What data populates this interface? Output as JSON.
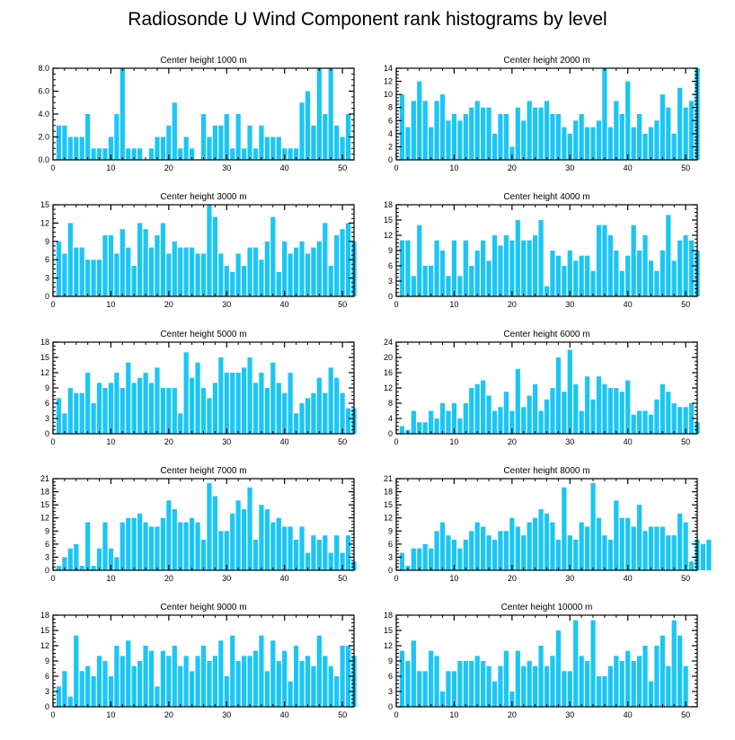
{
  "title": "Radiosonde U Wind Component rank histograms by level",
  "colors": {
    "bar": "#1AC6F5",
    "frame": "#000000",
    "background": "#FFFFFF"
  },
  "chart_data": [
    {
      "type": "bar",
      "title": "Center height 1000 m",
      "x_start": 1,
      "xlim": [
        0,
        52
      ],
      "xticks": [
        0,
        10,
        20,
        30,
        40,
        50
      ],
      "ylim": [
        0,
        8
      ],
      "yticks": [
        0,
        2,
        4,
        6,
        8
      ],
      "ytick_labels": [
        "0.0",
        "2.0",
        "4.0",
        "6.0",
        "8.0"
      ],
      "values": [
        3,
        3,
        2,
        2,
        2,
        4,
        1,
        1,
        1,
        2,
        4,
        8,
        1,
        1,
        1,
        0,
        1,
        2,
        2,
        3,
        5,
        1,
        2,
        1,
        0,
        4,
        2,
        3,
        3,
        4,
        1,
        4,
        1,
        3,
        1,
        3,
        2,
        2,
        2,
        1,
        1,
        1,
        5,
        6,
        3,
        8,
        4,
        8,
        3,
        2,
        4
      ]
    },
    {
      "type": "bar",
      "title": "Center height 2000 m",
      "x_start": 1,
      "xlim": [
        0,
        52
      ],
      "xticks": [
        0,
        10,
        20,
        30,
        40,
        50
      ],
      "ylim": [
        0,
        14
      ],
      "yticks": [
        0,
        2,
        4,
        6,
        8,
        10,
        12,
        14
      ],
      "ytick_labels": [
        "0",
        "2",
        "4",
        "6",
        "8",
        "10",
        "12",
        "14"
      ],
      "values": [
        10,
        5,
        9,
        12,
        9,
        5,
        9,
        10,
        6,
        7,
        6,
        7,
        8,
        9,
        8,
        8,
        4,
        7,
        7,
        2,
        8,
        6,
        9,
        8,
        8,
        9,
        7,
        7,
        5,
        4,
        6,
        7,
        5,
        5,
        6,
        14,
        5,
        9,
        7,
        12,
        5,
        7,
        4,
        5,
        6,
        10,
        8,
        4,
        11,
        8,
        9,
        14
      ]
    },
    {
      "type": "bar",
      "title": "Center height 3000 m",
      "x_start": 1,
      "xlim": [
        0,
        52
      ],
      "xticks": [
        0,
        10,
        20,
        30,
        40,
        50
      ],
      "ylim": [
        0,
        15
      ],
      "yticks": [
        0,
        3,
        6,
        9,
        12,
        15
      ],
      "ytick_labels": [
        "0",
        "3",
        "6",
        "9",
        "12",
        "15"
      ],
      "values": [
        9,
        7,
        12,
        8,
        8,
        6,
        6,
        6,
        10,
        10,
        7,
        11,
        8,
        5,
        12,
        11,
        8,
        10,
        12,
        7,
        9,
        8,
        8,
        8,
        7,
        7,
        15,
        13,
        7,
        5,
        4,
        7,
        5,
        8,
        8,
        6,
        9,
        13,
        4,
        9,
        7,
        8,
        9,
        7,
        8,
        9,
        12,
        5,
        10,
        11,
        12,
        9
      ]
    },
    {
      "type": "bar",
      "title": "Center height 4000 m",
      "x_start": 1,
      "xlim": [
        0,
        52
      ],
      "xticks": [
        0,
        10,
        20,
        30,
        40,
        50
      ],
      "ylim": [
        0,
        18
      ],
      "yticks": [
        0,
        3,
        6,
        9,
        12,
        15,
        18
      ],
      "ytick_labels": [
        "0",
        "3",
        "6",
        "9",
        "12",
        "15",
        "18"
      ],
      "values": [
        11,
        11,
        4,
        14,
        6,
        6,
        11,
        9,
        4,
        11,
        4,
        11,
        6,
        9,
        11,
        7,
        12,
        10,
        12,
        11,
        15,
        11,
        11,
        12,
        15,
        2,
        9,
        8,
        6,
        9,
        7,
        8,
        8,
        5,
        14,
        14,
        12,
        9,
        5,
        8,
        14,
        9,
        12,
        7,
        5,
        9,
        16,
        7,
        11,
        12,
        11,
        9
      ]
    },
    {
      "type": "bar",
      "title": "Center height 5000 m",
      "x_start": 1,
      "xlim": [
        0,
        52
      ],
      "xticks": [
        0,
        10,
        20,
        30,
        40,
        50
      ],
      "ylim": [
        0,
        18
      ],
      "yticks": [
        0,
        3,
        6,
        9,
        12,
        15,
        18
      ],
      "ytick_labels": [
        "0",
        "3",
        "6",
        "9",
        "12",
        "15",
        "18"
      ],
      "values": [
        7,
        4,
        9,
        8,
        8,
        12,
        6,
        10,
        9,
        10,
        12,
        9,
        14,
        10,
        11,
        12,
        10,
        13,
        9,
        9,
        9,
        4,
        16,
        11,
        14,
        9,
        7,
        10,
        15,
        12,
        12,
        12,
        13,
        15,
        10,
        12,
        9,
        14,
        10,
        8,
        12,
        4,
        6,
        7,
        8,
        11,
        8,
        13,
        11,
        8,
        5,
        5
      ]
    },
    {
      "type": "bar",
      "title": "Center height 6000 m",
      "x_start": 1,
      "xlim": [
        0,
        52
      ],
      "xticks": [
        0,
        10,
        20,
        30,
        40,
        50
      ],
      "ylim": [
        0,
        24
      ],
      "yticks": [
        0,
        4,
        8,
        12,
        16,
        20,
        24
      ],
      "ytick_labels": [
        "0",
        "4",
        "8",
        "12",
        "16",
        "20",
        "24"
      ],
      "values": [
        2,
        1,
        6,
        3,
        3,
        6,
        4,
        8,
        6,
        8,
        4,
        8,
        12,
        13,
        14,
        10,
        6,
        7,
        11,
        6,
        17,
        7,
        10,
        13,
        6,
        9,
        12,
        20,
        11,
        22,
        13,
        6,
        15,
        9,
        15,
        13,
        12,
        12,
        11,
        14,
        5,
        6,
        6,
        5,
        9,
        13,
        11,
        8,
        7,
        7,
        8,
        3
      ]
    },
    {
      "type": "bar",
      "title": "Center height 7000 m",
      "x_start": 1,
      "xlim": [
        0,
        52
      ],
      "xticks": [
        0,
        10,
        20,
        30,
        40,
        50
      ],
      "ylim": [
        0,
        21
      ],
      "yticks": [
        0,
        3,
        6,
        9,
        12,
        15,
        18,
        21
      ],
      "ytick_labels": [
        "0",
        "3",
        "6",
        "9",
        "12",
        "15",
        "18",
        "21"
      ],
      "values": [
        1,
        3,
        5,
        6,
        1,
        11,
        1,
        5,
        11,
        5,
        3,
        11,
        12,
        12,
        13,
        11,
        10,
        10,
        12,
        16,
        14,
        11,
        11,
        12,
        11,
        7,
        20,
        17,
        9,
        9,
        13,
        16,
        14,
        19,
        7,
        15,
        14,
        11,
        12,
        10,
        10,
        7,
        10,
        4,
        8,
        7,
        8,
        4,
        8,
        4,
        8,
        2
      ]
    },
    {
      "type": "bar",
      "title": "Center height 8000 m",
      "x_start": 1,
      "xlim": [
        0,
        52
      ],
      "xticks": [
        0,
        10,
        20,
        30,
        40,
        50
      ],
      "ylim": [
        0,
        21
      ],
      "yticks": [
        0,
        3,
        6,
        9,
        12,
        15,
        18,
        21
      ],
      "ytick_labels": [
        "0",
        "3",
        "6",
        "9",
        "12",
        "15",
        "18",
        "21"
      ],
      "values": [
        4,
        1,
        5,
        5,
        6,
        5,
        9,
        11,
        8,
        7,
        5,
        7,
        9,
        11,
        10,
        8,
        7,
        9,
        9,
        12,
        10,
        8,
        11,
        12,
        14,
        13,
        11,
        7,
        19,
        8,
        7,
        11,
        10,
        20,
        12,
        8,
        7,
        16,
        12,
        12,
        10,
        15,
        9,
        10,
        10,
        10,
        8,
        8,
        13,
        11,
        2,
        7,
        6,
        7
      ]
    },
    {
      "type": "bar",
      "title": "Center height 9000 m",
      "x_start": 1,
      "xlim": [
        0,
        52
      ],
      "xticks": [
        0,
        10,
        20,
        30,
        40,
        50
      ],
      "ylim": [
        0,
        18
      ],
      "yticks": [
        0,
        3,
        6,
        9,
        12,
        15,
        18
      ],
      "ytick_labels": [
        "0",
        "3",
        "6",
        "9",
        "12",
        "15",
        "18"
      ],
      "values": [
        4,
        7,
        2,
        14,
        7,
        8,
        6,
        10,
        9,
        6,
        12,
        10,
        13,
        8,
        9,
        12,
        11,
        4,
        11,
        10,
        12,
        8,
        10,
        7,
        10,
        12,
        9,
        10,
        13,
        6,
        14,
        9,
        10,
        10,
        11,
        14,
        7,
        13,
        9,
        11,
        5,
        12,
        9,
        10,
        8,
        14,
        10,
        8,
        6,
        12,
        12,
        10
      ]
    },
    {
      "type": "bar",
      "title": "Center height 10000 m",
      "x_start": 1,
      "xlim": [
        0,
        52
      ],
      "xticks": [
        0,
        10,
        20,
        30,
        40,
        50
      ],
      "ylim": [
        0,
        18
      ],
      "yticks": [
        0,
        3,
        6,
        9,
        12,
        15,
        18
      ],
      "ytick_labels": [
        "0",
        "3",
        "6",
        "9",
        "12",
        "15",
        "18"
      ],
      "values": [
        11,
        9,
        13,
        7,
        7,
        11,
        10,
        3,
        7,
        7,
        9,
        9,
        9,
        10,
        9,
        8,
        5,
        8,
        11,
        3,
        11,
        8,
        9,
        8,
        12,
        8,
        10,
        15,
        7,
        7,
        17,
        10,
        9,
        17,
        6,
        6,
        8,
        10,
        9,
        11,
        9,
        10,
        12,
        5,
        12,
        14,
        8,
        17,
        14,
        8
      ]
    }
  ]
}
